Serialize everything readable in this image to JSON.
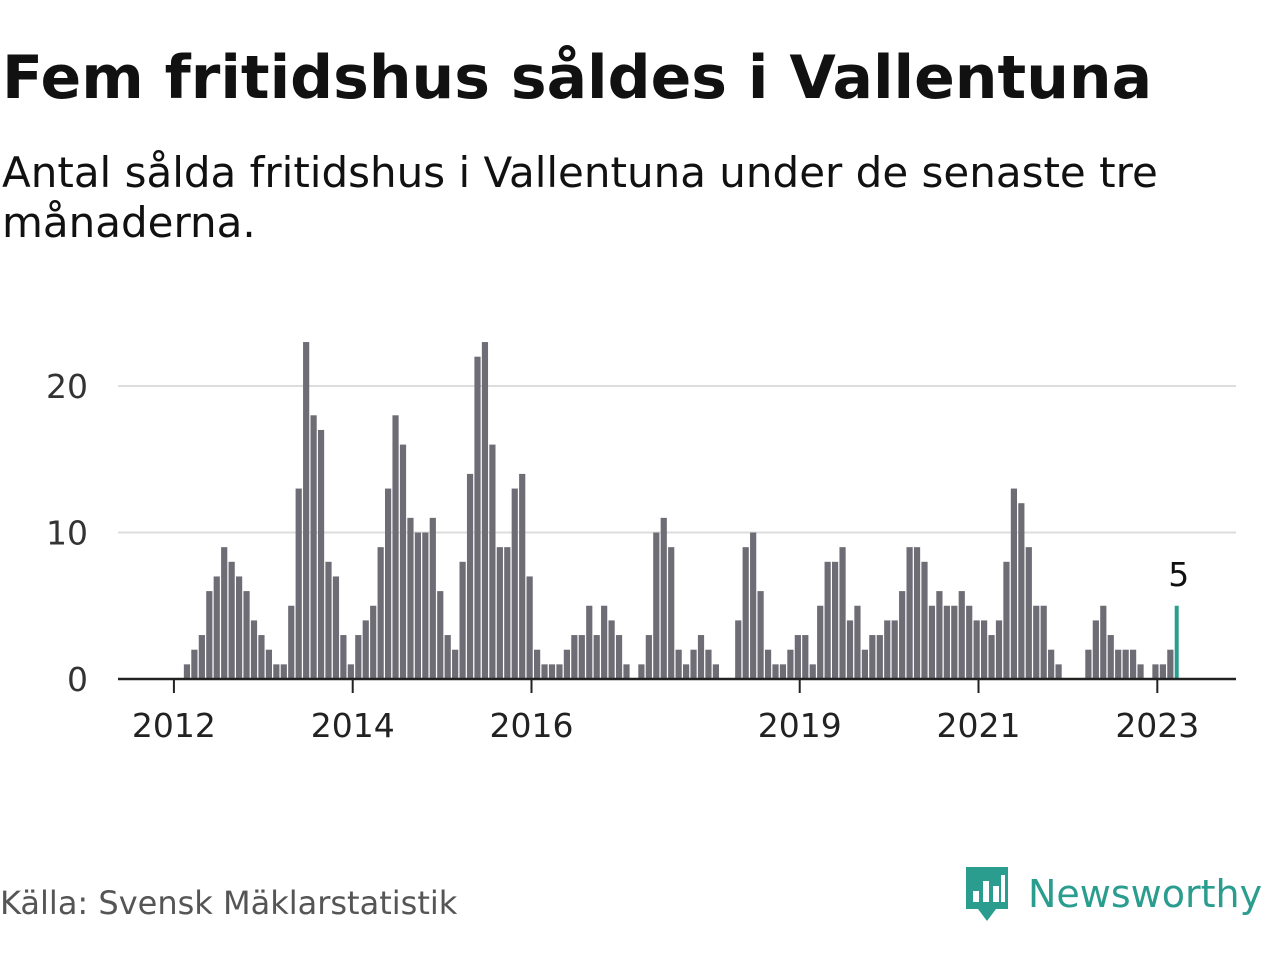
{
  "title": "Fem fritidshus såldes i Vallentuna",
  "subtitle": "Antal sålda fritidshus i Vallentuna under de senaste tre månaderna.",
  "source": "Källa: Svensk Mäklarstatistik",
  "brand": "Newsworthy",
  "colors": {
    "bar": "#6e6d75",
    "highlight": "#2a9d8f",
    "grid": "#dddddd",
    "axis": "#222222",
    "brand": "#2a9d8f"
  },
  "chart_data": {
    "type": "bar",
    "title": "Fem fritidshus såldes i Vallentuna",
    "xlabel": "",
    "ylabel": "",
    "ylim": [
      0,
      23
    ],
    "yticks": [
      0,
      10,
      20
    ],
    "xticks": [
      {
        "label": "2012",
        "year": 2012
      },
      {
        "label": "2014",
        "year": 2014
      },
      {
        "label": "2016",
        "year": 2016
      },
      {
        "label": "2019",
        "year": 2019
      },
      {
        "label": "2021",
        "year": 2021
      },
      {
        "label": "2023",
        "year": 2023
      }
    ],
    "start_year": 2012,
    "start_month": 1,
    "highlight_label": "5",
    "values": [
      0,
      1,
      2,
      3,
      6,
      7,
      9,
      8,
      7,
      6,
      4,
      3,
      2,
      1,
      1,
      5,
      13,
      23,
      18,
      17,
      8,
      7,
      3,
      1,
      3,
      4,
      5,
      9,
      13,
      18,
      16,
      11,
      10,
      10,
      11,
      6,
      3,
      2,
      8,
      14,
      22,
      23,
      16,
      9,
      9,
      13,
      14,
      7,
      2,
      1,
      1,
      1,
      2,
      3,
      3,
      5,
      3,
      5,
      4,
      3,
      1,
      0,
      1,
      3,
      10,
      11,
      9,
      2,
      1,
      2,
      3,
      2,
      1,
      0,
      0,
      4,
      9,
      10,
      6,
      2,
      1,
      1,
      2,
      3,
      3,
      1,
      5,
      8,
      8,
      9,
      4,
      5,
      2,
      3,
      3,
      4,
      4,
      6,
      9,
      9,
      8,
      5,
      6,
      5,
      5,
      6,
      5,
      4,
      4,
      3,
      4,
      8,
      13,
      12,
      9,
      5,
      5,
      2,
      1,
      0,
      0,
      0,
      2,
      4,
      5,
      3,
      2,
      2,
      2,
      1,
      0,
      1,
      1,
      2,
      5
    ]
  }
}
